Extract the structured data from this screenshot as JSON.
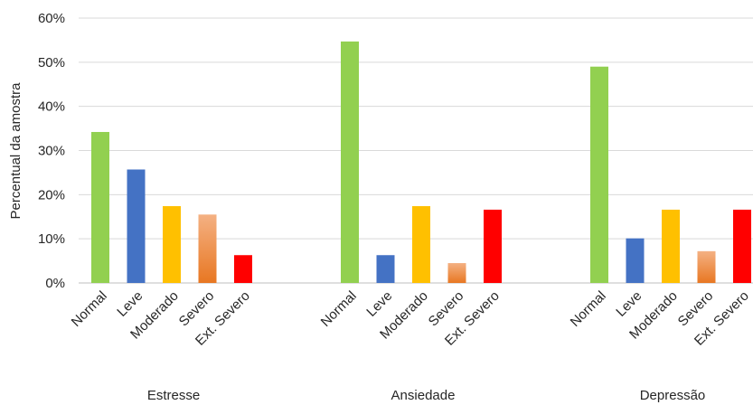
{
  "chart_data": {
    "type": "bar",
    "ylabel": "Percentual da amostra",
    "ylim": [
      0,
      60
    ],
    "y_ticks": [
      "0%",
      "10%",
      "20%",
      "30%",
      "40%",
      "50%",
      "60%"
    ],
    "grid": true,
    "groups": [
      {
        "name": "Estresse",
        "bars": [
          {
            "label": "Normal",
            "value": 34.2
          },
          {
            "label": "Leve",
            "value": 25.7
          },
          {
            "label": "Moderado",
            "value": 17.4
          },
          {
            "label": "Severo",
            "value": 15.5
          },
          {
            "label": "Ext. Severo",
            "value": 6.3
          }
        ]
      },
      {
        "name": "Ansiedade",
        "bars": [
          {
            "label": "Normal",
            "value": 54.7
          },
          {
            "label": "Leve",
            "value": 6.3
          },
          {
            "label": "Moderado",
            "value": 17.4
          },
          {
            "label": "Severo",
            "value": 4.5
          },
          {
            "label": "Ext. Severo",
            "value": 16.6
          }
        ]
      },
      {
        "name": "Depressão",
        "bars": [
          {
            "label": "Normal",
            "value": 49.0
          },
          {
            "label": "Leve",
            "value": 10.1
          },
          {
            "label": "Moderado",
            "value": 16.6
          },
          {
            "label": "Severo",
            "value": 7.2
          },
          {
            "label": "Ext. Severo",
            "value": 16.6
          }
        ]
      }
    ],
    "colors": {
      "Normal": "#92d050",
      "Leve": "#4472c4",
      "Moderado": "#ffc000",
      "Severo": "#f4a460",
      "Ext. Severo": "#ff0000"
    },
    "severo_gradient": [
      "#f4b183",
      "#e87722"
    ]
  }
}
